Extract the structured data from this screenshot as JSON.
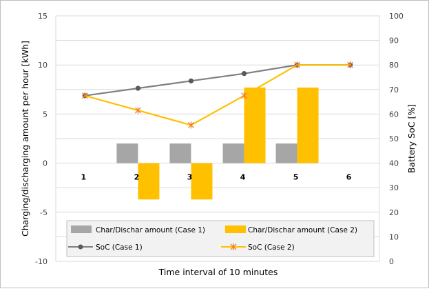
{
  "chart_data": {
    "type": "bar+line",
    "categories": [
      "1",
      "2",
      "3",
      "4",
      "5",
      "6"
    ],
    "xlabel": "Time interval of 10 minutes",
    "ylabel_left": "Charging/discharging amount per hour [kWh]",
    "ylabel_right": "Battery SoC [%]",
    "ylim_left": [
      -10,
      15
    ],
    "ylim_right": [
      0,
      100
    ],
    "yticks_left": [
      "-10",
      "-5",
      "0",
      "5",
      "10",
      "15"
    ],
    "yticks_right": [
      "0",
      "10",
      "20",
      "30",
      "40",
      "50",
      "60",
      "70",
      "80",
      "90",
      "100"
    ],
    "grid": true,
    "bar_series": [
      {
        "name": "Char/Dischar amount (Case 1)",
        "color": "#a6a6a6",
        "values": [
          0,
          2,
          2,
          2,
          2,
          0
        ]
      },
      {
        "name": "Char/Dischar amount (Case 2)",
        "color": "#ffc000",
        "values": [
          0,
          -3.7,
          -3.7,
          7.7,
          7.7,
          0
        ]
      }
    ],
    "line_series": [
      {
        "name": "SoC (Case 1)",
        "color": "#7f7f7f",
        "marker": "circle",
        "values": [
          67.5,
          70.5,
          73.5,
          76.5,
          80,
          80
        ]
      },
      {
        "name": "SoC (Case 2)",
        "color": "#ffc000",
        "marker": "x",
        "marker_color": "#ed7d31",
        "values": [
          67.5,
          61.5,
          55.5,
          67.5,
          80,
          80
        ]
      }
    ],
    "legend_position": "bottom-center"
  }
}
